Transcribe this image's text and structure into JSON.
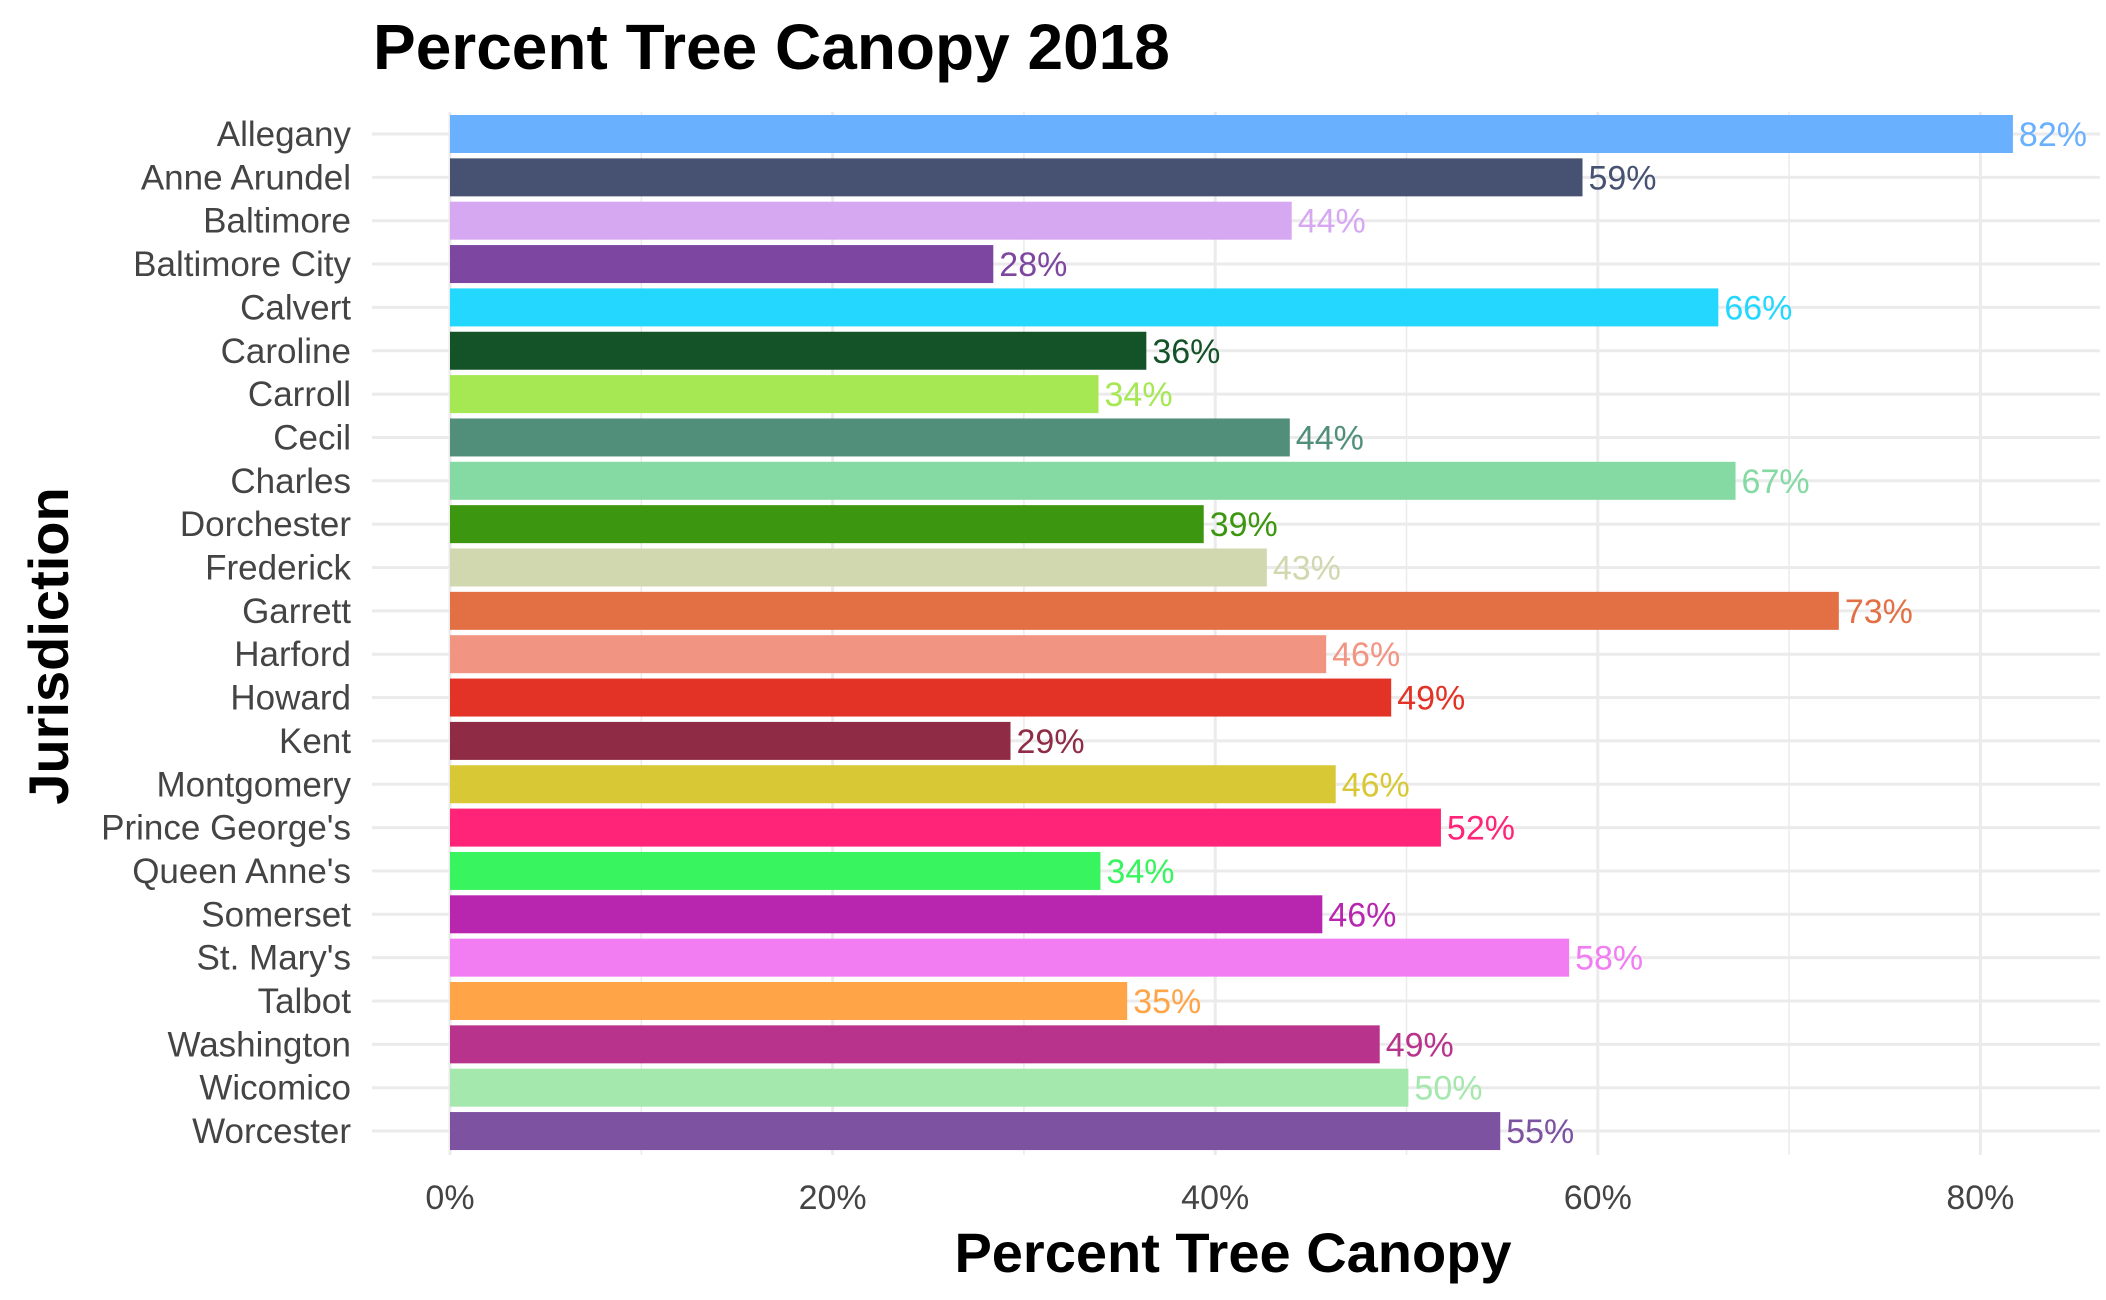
{
  "chart_data": {
    "type": "bar",
    "orientation": "horizontal",
    "title": "Percent Tree Canopy 2018",
    "xlabel": "Percent Tree Canopy",
    "ylabel": "Jurisdiction",
    "xlim": [
      0,
      85
    ],
    "x_ticks": [
      0,
      20,
      40,
      60,
      80
    ],
    "x_tick_labels": [
      "0%",
      "20%",
      "40%",
      "60%",
      "80%"
    ],
    "grid": true,
    "legend": "none",
    "categories": [
      "Allegany",
      "Anne Arundel",
      "Baltimore",
      "Baltimore City",
      "Calvert",
      "Caroline",
      "Carroll",
      "Cecil",
      "Charles",
      "Dorchester",
      "Frederick",
      "Garrett",
      "Harford",
      "Howard",
      "Kent",
      "Montgomery",
      "Prince George's",
      "Queen Anne's",
      "Somerset",
      "St. Mary's",
      "Talbot",
      "Washington",
      "Wicomico",
      "Worcester"
    ],
    "values": [
      81.7,
      59.2,
      44.0,
      28.4,
      66.3,
      36.4,
      33.9,
      43.9,
      67.2,
      39.4,
      42.7,
      72.6,
      45.8,
      49.2,
      29.3,
      46.3,
      51.8,
      34.0,
      45.6,
      58.5,
      35.4,
      48.6,
      50.1,
      54.9
    ],
    "value_labels": [
      "82%",
      "59%",
      "44%",
      "28%",
      "66%",
      "36%",
      "34%",
      "44%",
      "67%",
      "39%",
      "43%",
      "73%",
      "46%",
      "49%",
      "29%",
      "46%",
      "52%",
      "34%",
      "46%",
      "58%",
      "35%",
      "49%",
      "50%",
      "55%"
    ],
    "colors": [
      "#69B0FF",
      "#475273",
      "#D7A8F2",
      "#7D47A1",
      "#24D7FF",
      "#145228",
      "#A5E853",
      "#528F7A",
      "#85D9A3",
      "#3C960F",
      "#D1D8AF",
      "#E37045",
      "#F29482",
      "#E33326",
      "#8F2B45",
      "#D9C836",
      "#FF2478",
      "#38F55F",
      "#B826B0",
      "#F27DF2",
      "#FFA547",
      "#B8348C",
      "#A5E8AE",
      "#7D52A1"
    ]
  }
}
